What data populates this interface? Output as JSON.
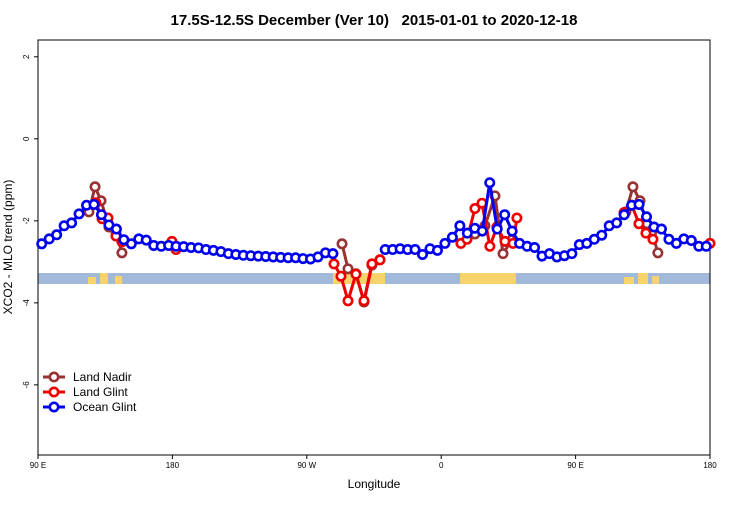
{
  "chart_data": {
    "type": "line",
    "title": "17.5S-12.5S December (Ver 10)   2015-01-01 to 2020-12-18",
    "x_label": "Longitude",
    "y_label": "XCO2 - MLO trend (ppm)",
    "xlim": [
      90,
      540
    ],
    "ylim": [
      -7.71,
      2.41
    ],
    "xticks": [
      {
        "value": 90,
        "label": "90 E"
      },
      180,
      {
        "value": 270,
        "label": "90 W"
      },
      {
        "value": 360,
        "label": "0"
      },
      {
        "value": 450,
        "label": "90 E"
      },
      {
        "value": 540,
        "label": "180"
      }
    ],
    "yticks": [
      2,
      0,
      -2,
      -4,
      -6
    ],
    "legend": "bottom-left",
    "series": [
      {
        "name": "Land Nadir",
        "color": "#993333",
        "x": [
          124.1,
          128.2,
          132.2,
          137.5,
          142.2,
          146.2,
          200,
          293.6,
          297.6,
          302.9,
          308.3,
          313.6,
          319.0,
          380,
          382.6,
          389.3,
          396.0,
          401.4,
          407.4,
          450,
          483.7,
          488.4,
          493.1,
          497.8,
          501.1,
          505.1
        ],
        "values": [
          -1.78,
          -1.17,
          -1.51,
          -2.15,
          -2.27,
          -2.78,
          null,
          -2.56,
          -3.17,
          -3.29,
          -3.98,
          -3.08,
          -2.95,
          null,
          -2.32,
          -2.12,
          -1.39,
          -2.8,
          -2.46,
          null,
          -1.78,
          -1.17,
          -1.51,
          -2.07,
          -2.27,
          -2.78
        ]
      },
      {
        "name": "Land Glint",
        "color": "#ee0000",
        "x": [
          128.8,
          132.9,
          136.9,
          142.2,
          146.2,
          160,
          179.7,
          182.4,
          250,
          288.2,
          292.9,
          297.6,
          302.9,
          308.3,
          313.6,
          319.0,
          340,
          373.2,
          377.3,
          382.6,
          387.3,
          392.6,
          397.3,
          402.7,
          408.1,
          410.7,
          450,
          482.4,
          487.7,
          492.4,
          497.1,
          501.8,
          520,
          540
        ],
        "values": [
          -1.56,
          -1.95,
          -1.93,
          -2.37,
          -2.51,
          null,
          -2.5,
          -2.7,
          null,
          -3.05,
          -3.35,
          -3.95,
          -3.3,
          -3.95,
          -3.05,
          -2.95,
          null,
          -2.55,
          -2.45,
          -1.7,
          -1.57,
          -2.62,
          -2.15,
          -2.5,
          -2.55,
          -1.93,
          null,
          -1.8,
          -1.62,
          -2.07,
          -2.3,
          -2.45,
          null,
          -2.55
        ]
      },
      {
        "name": "Ocean Glint",
        "color": "#0000ee",
        "x": [
          92.5,
          97.5,
          102.5,
          107.5,
          112.5,
          117.5,
          122.5,
          127.5,
          132.5,
          137.5,
          142.5,
          147.5,
          152.5,
          157.5,
          162.5,
          167.5,
          172.5,
          177.5,
          182.5,
          187.5,
          192.5,
          197.5,
          202.5,
          207.5,
          212.5,
          217.5,
          222.5,
          227.5,
          232.5,
          237.5,
          242.5,
          247.5,
          252.5,
          257.5,
          262.5,
          267.5,
          272.5,
          277.5,
          282.5,
          287.5,
          292.5,
          297.5,
          302.5,
          307.5,
          312.5,
          317.5,
          322.5,
          327.5,
          332.5,
          337.5,
          342.5,
          347.5,
          352.5,
          357.5,
          362.5,
          367.5,
          372.5,
          377.5,
          382.5,
          387.5,
          392.5,
          397.5,
          402.5,
          407.5,
          412.5,
          417.5,
          422.5,
          427.5,
          432.5,
          437.5,
          442.5,
          447.5,
          452.5,
          457.5,
          462.5,
          467.5,
          472.5,
          477.5,
          482.5,
          487.5,
          492.5,
          497.5,
          502.5,
          507.5,
          512.5,
          517.5,
          522.5,
          527.5,
          532.5,
          537.5
        ],
        "values": [
          -2.56,
          -2.44,
          -2.34,
          -2.12,
          -2.05,
          -1.83,
          -1.62,
          -1.6,
          -1.85,
          -2.1,
          -2.2,
          -2.46,
          -2.56,
          -2.44,
          -2.47,
          -2.6,
          -2.62,
          -2.6,
          -2.62,
          -2.63,
          -2.65,
          -2.66,
          -2.7,
          -2.72,
          -2.75,
          -2.8,
          -2.82,
          -2.84,
          -2.85,
          -2.86,
          -2.87,
          -2.88,
          -2.89,
          -2.9,
          -2.9,
          -2.92,
          -2.93,
          -2.88,
          -2.78,
          -2.8,
          null,
          null,
          null,
          null,
          null,
          null,
          -2.7,
          -2.7,
          -2.68,
          -2.7,
          -2.7,
          -2.82,
          -2.68,
          -2.72,
          -2.55,
          -2.4,
          -2.12,
          -2.3,
          -2.18,
          -2.25,
          -1.07,
          -2.2,
          -1.85,
          -2.25,
          -2.55,
          -2.62,
          -2.65,
          -2.86,
          -2.8,
          -2.88,
          -2.85,
          -2.8,
          -2.58,
          -2.55,
          -2.45,
          -2.35,
          -2.12,
          -2.05,
          -1.85,
          -1.62,
          -1.6,
          -1.9,
          -2.15,
          -2.2,
          -2.45,
          -2.55,
          -2.44,
          -2.48,
          -2.62,
          -2.62
        ]
      }
    ]
  }
}
